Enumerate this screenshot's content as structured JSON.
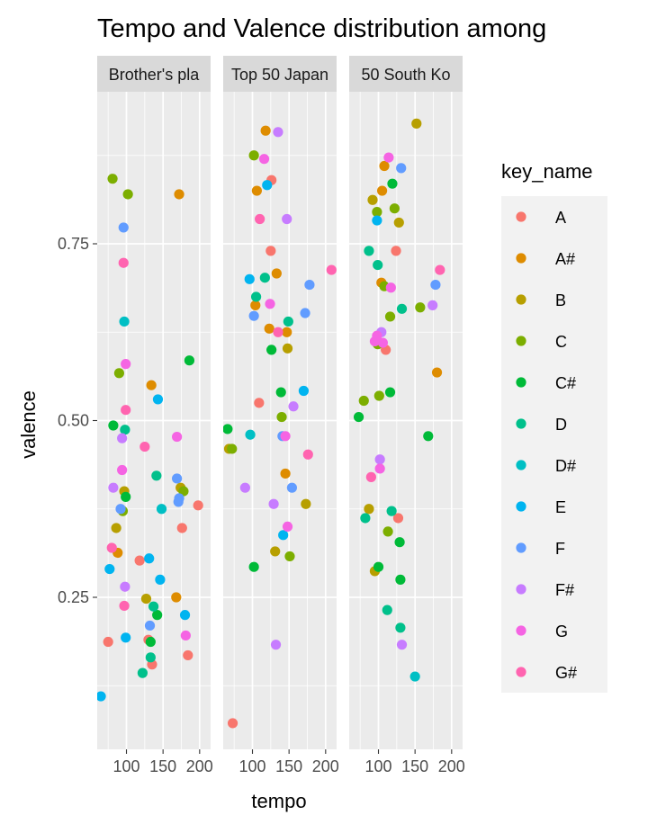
{
  "chart_data": {
    "type": "scatter",
    "title": "Tempo and Valence distribution among",
    "xlabel": "tempo",
    "ylabel": "valence",
    "xlim": [
      60,
      215
    ],
    "ylim": [
      0.035,
      0.965
    ],
    "xticks": [
      100,
      150,
      200
    ],
    "yticks": [
      0.25,
      0.5,
      0.75
    ],
    "legend": {
      "title": "key_name",
      "position": "right",
      "keys": [
        "A",
        "A#",
        "B",
        "C",
        "C#",
        "D",
        "D#",
        "E",
        "F",
        "F#",
        "G",
        "G#"
      ],
      "colors": [
        "#F8766D",
        "#DE8C00",
        "#B79F00",
        "#7CAE00",
        "#00BA38",
        "#00C08B",
        "#00BFC4",
        "#00B4F0",
        "#619CFF",
        "#C77CFF",
        "#F564E3",
        "#FF64B0"
      ]
    },
    "panels": [
      {
        "name": "Brother's pla",
        "points": [
          {
            "x": 75,
            "y": 0.187,
            "k": "A"
          },
          {
            "x": 118,
            "y": 0.302,
            "k": "A"
          },
          {
            "x": 130,
            "y": 0.19,
            "k": "A"
          },
          {
            "x": 135,
            "y": 0.155,
            "k": "A"
          },
          {
            "x": 176,
            "y": 0.348,
            "k": "A"
          },
          {
            "x": 184,
            "y": 0.168,
            "k": "A"
          },
          {
            "x": 198,
            "y": 0.38,
            "k": "A"
          },
          {
            "x": 88,
            "y": 0.313,
            "k": "A#"
          },
          {
            "x": 134,
            "y": 0.55,
            "k": "A#"
          },
          {
            "x": 168,
            "y": 0.25,
            "k": "A#"
          },
          {
            "x": 172,
            "y": 0.82,
            "k": "A#"
          },
          {
            "x": 86,
            "y": 0.348,
            "k": "B"
          },
          {
            "x": 97,
            "y": 0.4,
            "k": "B"
          },
          {
            "x": 127,
            "y": 0.248,
            "k": "B"
          },
          {
            "x": 174,
            "y": 0.405,
            "k": "B"
          },
          {
            "x": 81,
            "y": 0.842,
            "k": "C"
          },
          {
            "x": 90,
            "y": 0.567,
            "k": "C"
          },
          {
            "x": 95,
            "y": 0.372,
            "k": "C"
          },
          {
            "x": 102,
            "y": 0.82,
            "k": "C"
          },
          {
            "x": 178,
            "y": 0.4,
            "k": "C"
          },
          {
            "x": 82,
            "y": 0.493,
            "k": "C#"
          },
          {
            "x": 99,
            "y": 0.392,
            "k": "C#"
          },
          {
            "x": 133,
            "y": 0.187,
            "k": "C#"
          },
          {
            "x": 142,
            "y": 0.225,
            "k": "C#"
          },
          {
            "x": 186,
            "y": 0.585,
            "k": "C#"
          },
          {
            "x": 98,
            "y": 0.487,
            "k": "D"
          },
          {
            "x": 122,
            "y": 0.143,
            "k": "D"
          },
          {
            "x": 133,
            "y": 0.165,
            "k": "D"
          },
          {
            "x": 137,
            "y": 0.237,
            "k": "D"
          },
          {
            "x": 141,
            "y": 0.422,
            "k": "D"
          },
          {
            "x": 97,
            "y": 0.64,
            "k": "D#"
          },
          {
            "x": 148,
            "y": 0.375,
            "k": "D#"
          },
          {
            "x": 65,
            "y": 0.11,
            "k": "E"
          },
          {
            "x": 77,
            "y": 0.29,
            "k": "E"
          },
          {
            "x": 99,
            "y": 0.193,
            "k": "E"
          },
          {
            "x": 131,
            "y": 0.305,
            "k": "E"
          },
          {
            "x": 143,
            "y": 0.53,
            "k": "E"
          },
          {
            "x": 146,
            "y": 0.275,
            "k": "E"
          },
          {
            "x": 180,
            "y": 0.225,
            "k": "E"
          },
          {
            "x": 92,
            "y": 0.375,
            "k": "F"
          },
          {
            "x": 96,
            "y": 0.773,
            "k": "F"
          },
          {
            "x": 132,
            "y": 0.21,
            "k": "F"
          },
          {
            "x": 169,
            "y": 0.418,
            "k": "F"
          },
          {
            "x": 171,
            "y": 0.385,
            "k": "F"
          },
          {
            "x": 172,
            "y": 0.39,
            "k": "F"
          },
          {
            "x": 82,
            "y": 0.405,
            "k": "F#"
          },
          {
            "x": 94,
            "y": 0.475,
            "k": "F#"
          },
          {
            "x": 98,
            "y": 0.265,
            "k": "F#"
          },
          {
            "x": 94,
            "y": 0.43,
            "k": "G"
          },
          {
            "x": 99,
            "y": 0.58,
            "k": "G"
          },
          {
            "x": 169,
            "y": 0.477,
            "k": "G"
          },
          {
            "x": 181,
            "y": 0.196,
            "k": "G"
          },
          {
            "x": 80,
            "y": 0.32,
            "k": "G#"
          },
          {
            "x": 96,
            "y": 0.723,
            "k": "G#"
          },
          {
            "x": 97,
            "y": 0.238,
            "k": "G#"
          },
          {
            "x": 99,
            "y": 0.515,
            "k": "G#"
          },
          {
            "x": 125,
            "y": 0.463,
            "k": "G#"
          }
        ]
      },
      {
        "name": "Top 50 Japan",
        "points": [
          {
            "x": 73,
            "y": 0.072,
            "k": "A"
          },
          {
            "x": 109,
            "y": 0.525,
            "k": "A"
          },
          {
            "x": 125,
            "y": 0.74,
            "k": "A"
          },
          {
            "x": 126,
            "y": 0.84,
            "k": "A"
          },
          {
            "x": 104,
            "y": 0.663,
            "k": "A#"
          },
          {
            "x": 106,
            "y": 0.825,
            "k": "A#"
          },
          {
            "x": 118,
            "y": 0.91,
            "k": "A#"
          },
          {
            "x": 123,
            "y": 0.63,
            "k": "A#"
          },
          {
            "x": 133,
            "y": 0.708,
            "k": "A#"
          },
          {
            "x": 145,
            "y": 0.425,
            "k": "A#"
          },
          {
            "x": 147,
            "y": 0.625,
            "k": "A#"
          },
          {
            "x": 68,
            "y": 0.46,
            "k": "B"
          },
          {
            "x": 131,
            "y": 0.315,
            "k": "B"
          },
          {
            "x": 148,
            "y": 0.602,
            "k": "B"
          },
          {
            "x": 173,
            "y": 0.382,
            "k": "B"
          },
          {
            "x": 102,
            "y": 0.875,
            "k": "C"
          },
          {
            "x": 72,
            "y": 0.46,
            "k": "C"
          },
          {
            "x": 140,
            "y": 0.505,
            "k": "C"
          },
          {
            "x": 151,
            "y": 0.308,
            "k": "C"
          },
          {
            "x": 66,
            "y": 0.488,
            "k": "C#"
          },
          {
            "x": 102,
            "y": 0.293,
            "k": "C#"
          },
          {
            "x": 126,
            "y": 0.6,
            "k": "C#"
          },
          {
            "x": 139,
            "y": 0.54,
            "k": "C#"
          },
          {
            "x": 105,
            "y": 0.675,
            "k": "D"
          },
          {
            "x": 117,
            "y": 0.702,
            "k": "D"
          },
          {
            "x": 149,
            "y": 0.64,
            "k": "D"
          },
          {
            "x": 97,
            "y": 0.48,
            "k": "D#"
          },
          {
            "x": 96,
            "y": 0.7,
            "k": "E"
          },
          {
            "x": 120,
            "y": 0.833,
            "k": "E"
          },
          {
            "x": 142,
            "y": 0.338,
            "k": "E"
          },
          {
            "x": 170,
            "y": 0.542,
            "k": "E"
          },
          {
            "x": 102,
            "y": 0.648,
            "k": "F"
          },
          {
            "x": 141,
            "y": 0.478,
            "k": "F"
          },
          {
            "x": 154,
            "y": 0.405,
            "k": "F"
          },
          {
            "x": 172,
            "y": 0.652,
            "k": "F"
          },
          {
            "x": 178,
            "y": 0.692,
            "k": "F"
          },
          {
            "x": 90,
            "y": 0.405,
            "k": "F#"
          },
          {
            "x": 129,
            "y": 0.382,
            "k": "F#"
          },
          {
            "x": 135,
            "y": 0.908,
            "k": "F#"
          },
          {
            "x": 147,
            "y": 0.785,
            "k": "F#"
          },
          {
            "x": 132,
            "y": 0.183,
            "k": "F#"
          },
          {
            "x": 156,
            "y": 0.52,
            "k": "F#"
          },
          {
            "x": 116,
            "y": 0.87,
            "k": "G"
          },
          {
            "x": 124,
            "y": 0.665,
            "k": "G"
          },
          {
            "x": 145,
            "y": 0.478,
            "k": "G"
          },
          {
            "x": 148,
            "y": 0.35,
            "k": "G"
          },
          {
            "x": 110,
            "y": 0.785,
            "k": "G#"
          },
          {
            "x": 135,
            "y": 0.625,
            "k": "G#"
          },
          {
            "x": 176,
            "y": 0.452,
            "k": "G#"
          },
          {
            "x": 208,
            "y": 0.713,
            "k": "G#"
          }
        ]
      },
      {
        "name": "50 South Ko",
        "points": [
          {
            "x": 110,
            "y": 0.6,
            "k": "A"
          },
          {
            "x": 124,
            "y": 0.74,
            "k": "A"
          },
          {
            "x": 127,
            "y": 0.362,
            "k": "A"
          },
          {
            "x": 108,
            "y": 0.86,
            "k": "A#"
          },
          {
            "x": 104,
            "y": 0.695,
            "k": "A#"
          },
          {
            "x": 105,
            "y": 0.825,
            "k": "A#"
          },
          {
            "x": 180,
            "y": 0.568,
            "k": "A#"
          },
          {
            "x": 92,
            "y": 0.812,
            "k": "B"
          },
          {
            "x": 95,
            "y": 0.287,
            "k": "B"
          },
          {
            "x": 87,
            "y": 0.375,
            "k": "B"
          },
          {
            "x": 128,
            "y": 0.78,
            "k": "B"
          },
          {
            "x": 152,
            "y": 0.92,
            "k": "B"
          },
          {
            "x": 108,
            "y": 0.69,
            "k": "C"
          },
          {
            "x": 80,
            "y": 0.528,
            "k": "C"
          },
          {
            "x": 98,
            "y": 0.795,
            "k": "C"
          },
          {
            "x": 99,
            "y": 0.608,
            "k": "C"
          },
          {
            "x": 101,
            "y": 0.535,
            "k": "C"
          },
          {
            "x": 113,
            "y": 0.343,
            "k": "C"
          },
          {
            "x": 122,
            "y": 0.8,
            "k": "C"
          },
          {
            "x": 116,
            "y": 0.647,
            "k": "C"
          },
          {
            "x": 157,
            "y": 0.66,
            "k": "C"
          },
          {
            "x": 73,
            "y": 0.505,
            "k": "C#"
          },
          {
            "x": 100,
            "y": 0.293,
            "k": "C#"
          },
          {
            "x": 116,
            "y": 0.54,
            "k": "C#"
          },
          {
            "x": 119,
            "y": 0.835,
            "k": "C#"
          },
          {
            "x": 129,
            "y": 0.328,
            "k": "C#"
          },
          {
            "x": 130,
            "y": 0.275,
            "k": "C#"
          },
          {
            "x": 168,
            "y": 0.478,
            "k": "C#"
          },
          {
            "x": 87,
            "y": 0.74,
            "k": "D"
          },
          {
            "x": 82,
            "y": 0.362,
            "k": "D"
          },
          {
            "x": 99,
            "y": 0.72,
            "k": "D"
          },
          {
            "x": 112,
            "y": 0.232,
            "k": "D"
          },
          {
            "x": 118,
            "y": 0.372,
            "k": "D"
          },
          {
            "x": 130,
            "y": 0.207,
            "k": "D"
          },
          {
            "x": 132,
            "y": 0.658,
            "k": "D"
          },
          {
            "x": 150,
            "y": 0.138,
            "k": "D#"
          },
          {
            "x": 98,
            "y": 0.783,
            "k": "E"
          },
          {
            "x": 131,
            "y": 0.857,
            "k": "F"
          },
          {
            "x": 178,
            "y": 0.692,
            "k": "F"
          },
          {
            "x": 102,
            "y": 0.445,
            "k": "F#"
          },
          {
            "x": 104,
            "y": 0.625,
            "k": "F#"
          },
          {
            "x": 132,
            "y": 0.183,
            "k": "F#"
          },
          {
            "x": 174,
            "y": 0.663,
            "k": "F#"
          },
          {
            "x": 95,
            "y": 0.612,
            "k": "G"
          },
          {
            "x": 98,
            "y": 0.62,
            "k": "G"
          },
          {
            "x": 102,
            "y": 0.432,
            "k": "G"
          },
          {
            "x": 106,
            "y": 0.61,
            "k": "G"
          },
          {
            "x": 114,
            "y": 0.872,
            "k": "G"
          },
          {
            "x": 117,
            "y": 0.688,
            "k": "G"
          },
          {
            "x": 90,
            "y": 0.42,
            "k": "G#"
          },
          {
            "x": 184,
            "y": 0.713,
            "k": "G#"
          }
        ]
      }
    ]
  }
}
